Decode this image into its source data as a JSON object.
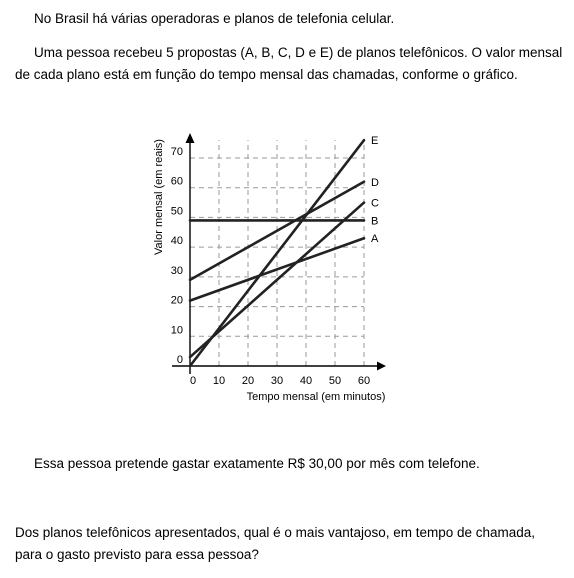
{
  "paragraphs": {
    "intro": "No Brasil há várias operadoras e planos de telefonia celular.",
    "context_line1": "Uma pessoa recebeu 5 propostas (A, B, C, D e E) de planos telefônicos. O valor mensal",
    "context_line2": "de cada plano está em função do tempo mensal das chamadas, conforme o gráfico.",
    "budget": "Essa pessoa pretende gastar exatamente R$ 30,00 por mês com telefone.",
    "question_line1": "Dos planos telefônicos apresentados, qual é o mais vantajoso, em tempo de chamada,",
    "question_line2": "para o gasto previsto para essa pessoa?"
  },
  "chart_data": {
    "type": "line",
    "xlabel": "Tempo mensal (em minutos)",
    "ylabel": "Valor mensal (em reais)",
    "xlim": [
      0,
      60
    ],
    "ylim": [
      0,
      70
    ],
    "x_ticks": [
      "0",
      "10",
      "20",
      "30",
      "40",
      "50",
      "60"
    ],
    "y_ticks": [
      "0",
      "10",
      "20",
      "30",
      "40",
      "50",
      "60",
      "70"
    ],
    "grid": "dashed",
    "series": [
      {
        "name": "A",
        "x": [
          0,
          60
        ],
        "y": [
          22,
          43
        ]
      },
      {
        "name": "B",
        "x": [
          0,
          60
        ],
        "y": [
          49,
          49
        ]
      },
      {
        "name": "C",
        "x": [
          0,
          60
        ],
        "y": [
          3,
          55
        ]
      },
      {
        "name": "D",
        "x": [
          0,
          60
        ],
        "y": [
          29,
          62
        ]
      },
      {
        "name": "E",
        "x": [
          0,
          60
        ],
        "y": [
          0,
          76
        ]
      }
    ]
  }
}
